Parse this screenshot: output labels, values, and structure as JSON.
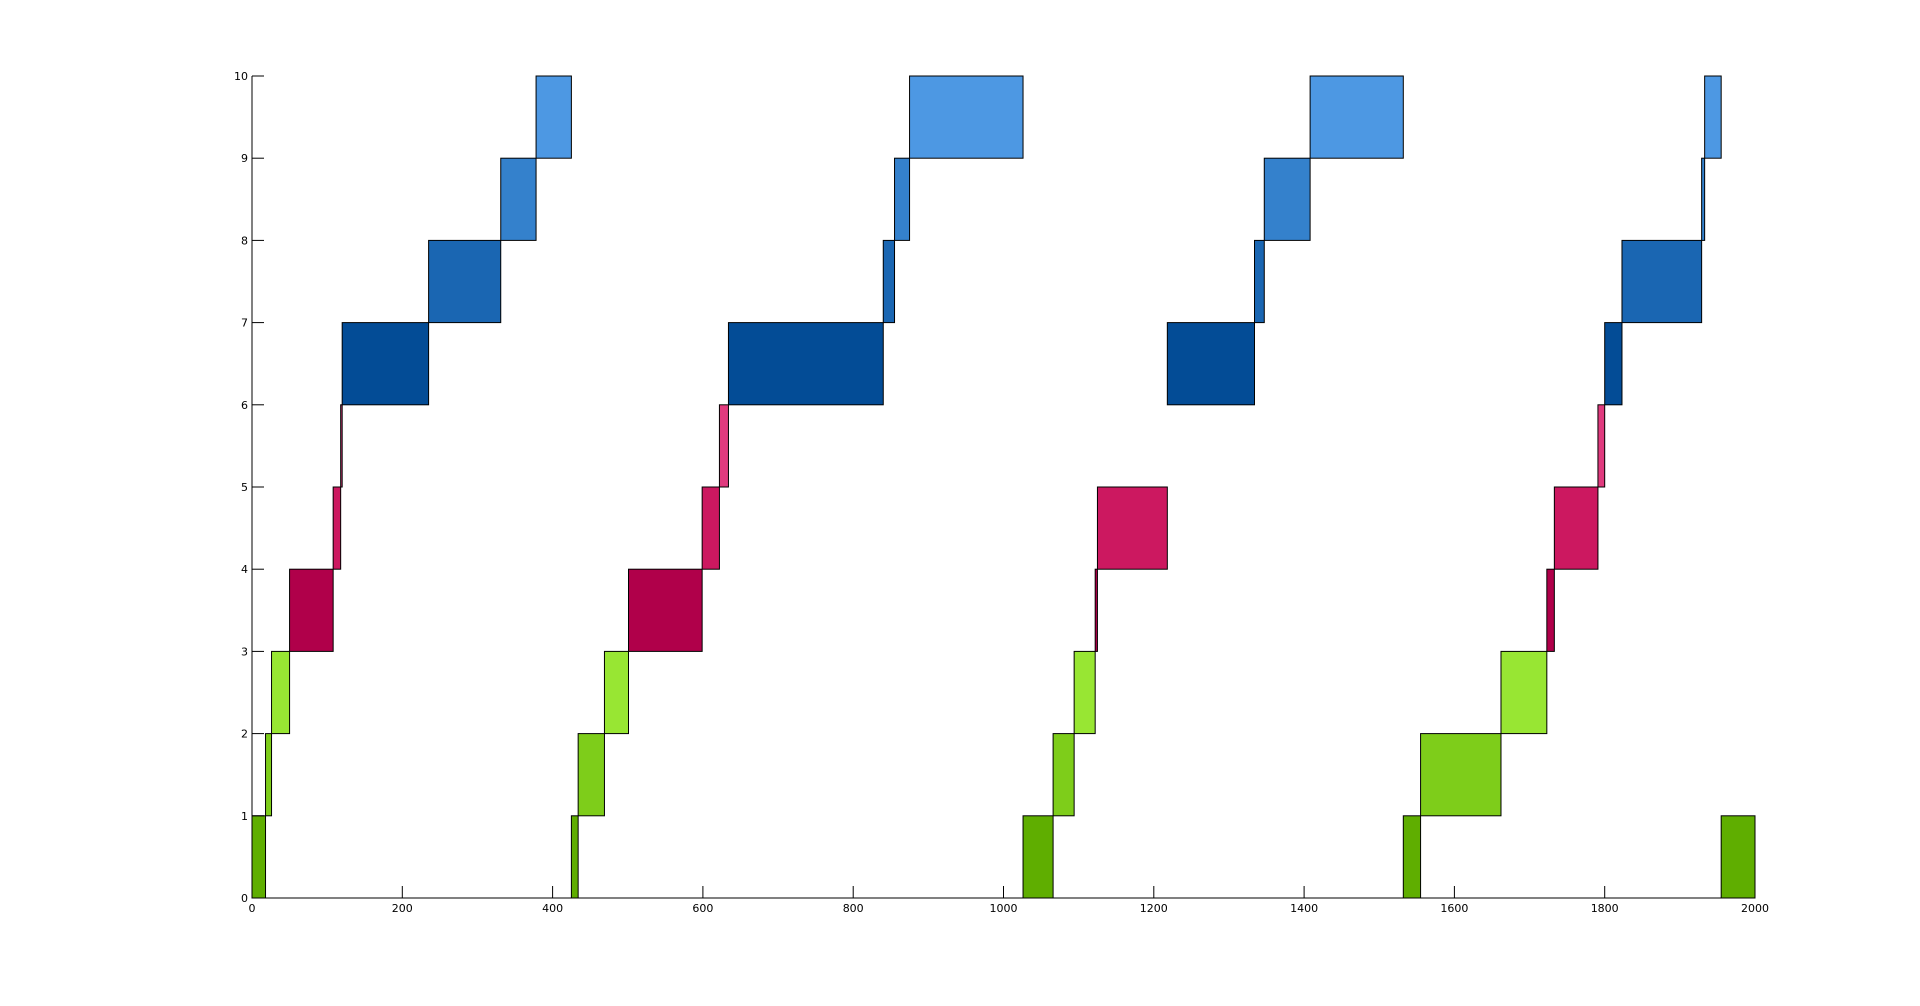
{
  "chart_data": {
    "type": "bar",
    "title": "",
    "xlabel": "",
    "ylabel": "",
    "xlim": [
      0,
      2000
    ],
    "ylim": [
      0,
      10
    ],
    "grid": false,
    "xticks": [
      {
        "value": 0,
        "label": "0"
      },
      {
        "value": 200,
        "label": "200"
      },
      {
        "value": 400,
        "label": "400"
      },
      {
        "value": 600,
        "label": "600"
      },
      {
        "value": 800,
        "label": "800"
      },
      {
        "value": 1000,
        "label": "1000"
      },
      {
        "value": 1200,
        "label": "1200"
      },
      {
        "value": 1400,
        "label": "1400"
      },
      {
        "value": 1600,
        "label": "1600"
      },
      {
        "value": 1800,
        "label": "1800"
      },
      {
        "value": 2000,
        "label": "2000"
      }
    ],
    "yticks": [
      {
        "value": 0,
        "label": "0"
      },
      {
        "value": 1,
        "label": "1"
      },
      {
        "value": 2,
        "label": "2"
      },
      {
        "value": 3,
        "label": "3"
      },
      {
        "value": 4,
        "label": "4"
      },
      {
        "value": 5,
        "label": "5"
      },
      {
        "value": 6,
        "label": "6"
      },
      {
        "value": 7,
        "label": "7"
      },
      {
        "value": 8,
        "label": "8"
      },
      {
        "value": 9,
        "label": "9"
      },
      {
        "value": 10,
        "label": "10"
      }
    ],
    "level_colors": {
      "0": "#5fae00",
      "1": "#7ecd1a",
      "2": "#98e633",
      "3": "#b0004a",
      "4": "#cc1860",
      "5": "#e03a7e",
      "6": "#034c96",
      "7": "#1a66b2",
      "8": "#3481cc",
      "9": "#4d98e3"
    },
    "segments": [
      {
        "level": 0,
        "start": 0,
        "end": 18
      },
      {
        "level": 1,
        "start": 18,
        "end": 26
      },
      {
        "level": 2,
        "start": 26,
        "end": 50
      },
      {
        "level": 3,
        "start": 50,
        "end": 108
      },
      {
        "level": 4,
        "start": 108,
        "end": 118
      },
      {
        "level": 5,
        "start": 118,
        "end": 120
      },
      {
        "level": 6,
        "start": 120,
        "end": 235
      },
      {
        "level": 7,
        "start": 235,
        "end": 331
      },
      {
        "level": 8,
        "start": 331,
        "end": 378
      },
      {
        "level": 9,
        "start": 378,
        "end": 425
      },
      {
        "level": 0,
        "start": 425,
        "end": 434
      },
      {
        "level": 1,
        "start": 434,
        "end": 469
      },
      {
        "level": 2,
        "start": 469,
        "end": 501
      },
      {
        "level": 3,
        "start": 501,
        "end": 599
      },
      {
        "level": 4,
        "start": 599,
        "end": 622
      },
      {
        "level": 5,
        "start": 622,
        "end": 634
      },
      {
        "level": 6,
        "start": 634,
        "end": 840
      },
      {
        "level": 7,
        "start": 840,
        "end": 855
      },
      {
        "level": 8,
        "start": 855,
        "end": 875
      },
      {
        "level": 9,
        "start": 875,
        "end": 1026
      },
      {
        "level": 0,
        "start": 1026,
        "end": 1066
      },
      {
        "level": 1,
        "start": 1066,
        "end": 1094
      },
      {
        "level": 2,
        "start": 1094,
        "end": 1122
      },
      {
        "level": 3,
        "start": 1122,
        "end": 1125
      },
      {
        "level": 4,
        "start": 1125,
        "end": 1218
      },
      {
        "level": 6,
        "start": 1218,
        "end": 1334
      },
      {
        "level": 7,
        "start": 1334,
        "end": 1347
      },
      {
        "level": 8,
        "start": 1347,
        "end": 1408
      },
      {
        "level": 9,
        "start": 1408,
        "end": 1532
      },
      {
        "level": 0,
        "start": 1532,
        "end": 1555
      },
      {
        "level": 1,
        "start": 1555,
        "end": 1662
      },
      {
        "level": 2,
        "start": 1662,
        "end": 1723
      },
      {
        "level": 3,
        "start": 1723,
        "end": 1733
      },
      {
        "level": 4,
        "start": 1733,
        "end": 1791
      },
      {
        "level": 5,
        "start": 1791,
        "end": 1800
      },
      {
        "level": 6,
        "start": 1800,
        "end": 1823
      },
      {
        "level": 7,
        "start": 1823,
        "end": 1929
      },
      {
        "level": 8,
        "start": 1929,
        "end": 1933
      },
      {
        "level": 9,
        "start": 1933,
        "end": 1955
      },
      {
        "level": 0,
        "start": 1955,
        "end": 2000
      }
    ]
  }
}
